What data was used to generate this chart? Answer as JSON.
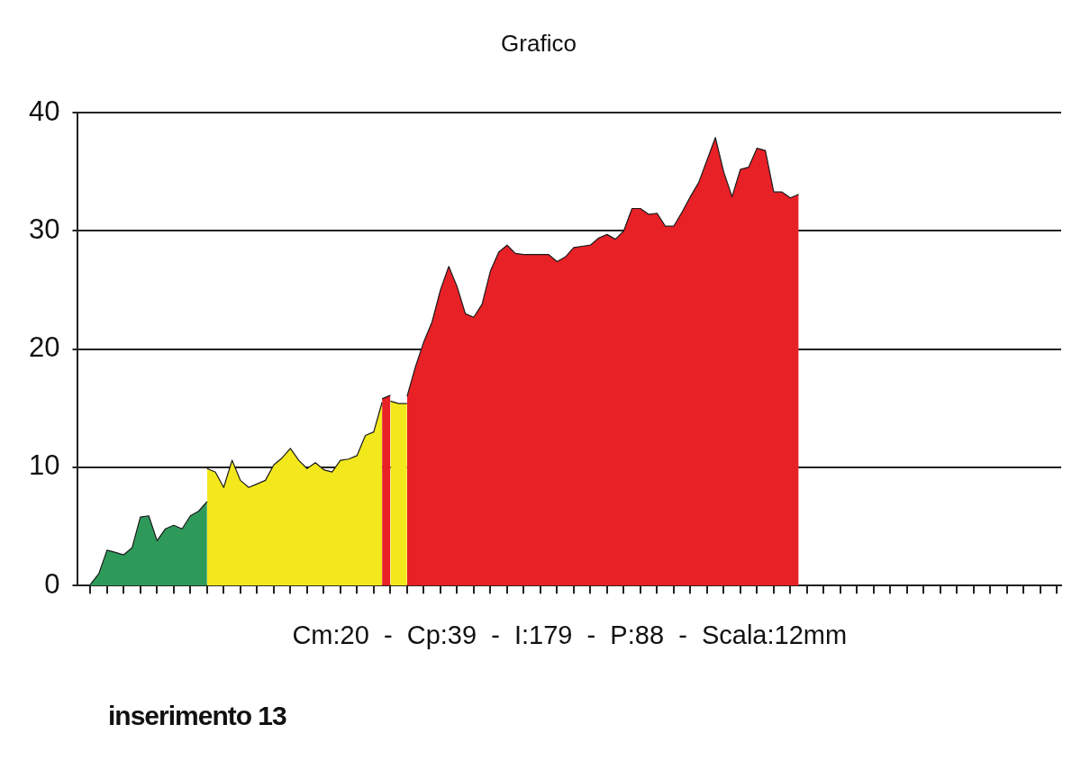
{
  "chart_data": {
    "type": "area",
    "title": "Grafico",
    "xlabel": "Cm:20  -  Cp:39  -  I:179  -  P:88  -  Scala:12mm",
    "annotations": [
      "inserimento 13"
    ],
    "categories": [
      null,
      null,
      null,
      null,
      null,
      null,
      null,
      null,
      null,
      null,
      null,
      null,
      null,
      null,
      null,
      null,
      null,
      null,
      null,
      null,
      null,
      null,
      null,
      null,
      null,
      null,
      null,
      null,
      null,
      null,
      null,
      null,
      null,
      null,
      null,
      null,
      null,
      null,
      null,
      null,
      null,
      null,
      null,
      null,
      null,
      null,
      null,
      null,
      null,
      null,
      null,
      null,
      null,
      null,
      null,
      null,
      null,
      null,
      null,
      null,
      null,
      null,
      null,
      null,
      null,
      null,
      null,
      null,
      null,
      null,
      null,
      null,
      null,
      null,
      null,
      null,
      null,
      null,
      null,
      null,
      null,
      null,
      null,
      null,
      null,
      null,
      null,
      null,
      null,
      null,
      null,
      null,
      null,
      null,
      null,
      null,
      null,
      null,
      null,
      null,
      null,
      null,
      null,
      null,
      null,
      null,
      null,
      null,
      null,
      null,
      null,
      null,
      null,
      null,
      null,
      null,
      null,
      null
    ],
    "ylim": [
      0,
      40
    ],
    "yticks": [
      0,
      10,
      20,
      30,
      40
    ],
    "grid": "y",
    "legend": false,
    "tick_labels": "y",
    "marker": "none",
    "series": [
      {
        "color": "#2e9a5a",
        "values": [
          null,
          0.1,
          1.0,
          3.0,
          2.8,
          2.6,
          3.2,
          5.8,
          5.9,
          3.8,
          4.8,
          5.1,
          4.8,
          5.9,
          6.3,
          7.1,
          null,
          null,
          null,
          null,
          null,
          null,
          null,
          null,
          null,
          null,
          null,
          null,
          null,
          null,
          null,
          null,
          null,
          null,
          null,
          null,
          null,
          null,
          null,
          null,
          null,
          null,
          null,
          null,
          null,
          null,
          null,
          null,
          null,
          null,
          null,
          null,
          null,
          null,
          null,
          null,
          null,
          null,
          null,
          null,
          null,
          null,
          null,
          null,
          null,
          null,
          null,
          null,
          null,
          null,
          null,
          null,
          null,
          null,
          null,
          null,
          null,
          null,
          null,
          null,
          null,
          null,
          null,
          null,
          null,
          null,
          null,
          null,
          null,
          null,
          null,
          null,
          null,
          null,
          null,
          null,
          null,
          null,
          null,
          null,
          null,
          null,
          null,
          null,
          null,
          null,
          null,
          null,
          null,
          null,
          null,
          null,
          null,
          null,
          null,
          null,
          null,
          null
        ]
      },
      {
        "color": "#f2e81c",
        "values": [
          null,
          null,
          null,
          null,
          null,
          null,
          null,
          null,
          null,
          null,
          null,
          null,
          null,
          null,
          null,
          9.9,
          9.6,
          8.3,
          10.6,
          8.9,
          8.3,
          8.6,
          8.9,
          10.2,
          10.8,
          11.6,
          10.6,
          9.9,
          10.4,
          9.8,
          9.6,
          10.6,
          10.7,
          11.0,
          12.7,
          13.0,
          15.5,
          null,
          null,
          null,
          null,
          null,
          null,
          null,
          null,
          null,
          null,
          null,
          null,
          null,
          null,
          null,
          null,
          null,
          null,
          null,
          null,
          null,
          null,
          null,
          null,
          null,
          null,
          null,
          null,
          null,
          null,
          null,
          null,
          null,
          null,
          null,
          null,
          null,
          null,
          null,
          null,
          null,
          null,
          null,
          null,
          null,
          null,
          null,
          null,
          null,
          null,
          null,
          null,
          null,
          null,
          null,
          null,
          null,
          null,
          null,
          null,
          null,
          null,
          null,
          null,
          null,
          null,
          null,
          null,
          null,
          null,
          null,
          null,
          null,
          null,
          null,
          null,
          null,
          null,
          null,
          null,
          null
        ]
      },
      {
        "color": "#f2e81c",
        "values": [
          null,
          null,
          null,
          null,
          null,
          null,
          null,
          null,
          null,
          null,
          null,
          null,
          null,
          null,
          null,
          null,
          null,
          null,
          null,
          null,
          null,
          null,
          null,
          null,
          null,
          null,
          null,
          null,
          null,
          null,
          null,
          null,
          null,
          null,
          null,
          null,
          null,
          15.6,
          15.4,
          15.4,
          null,
          null,
          null,
          null,
          null,
          null,
          null,
          null,
          null,
          null,
          null,
          null,
          null,
          null,
          null,
          null,
          null,
          null,
          null,
          null,
          null,
          null,
          null,
          null,
          null,
          null,
          null,
          null,
          null,
          null,
          null,
          null,
          null,
          null,
          null,
          null,
          null,
          null,
          null,
          null,
          null,
          null,
          null,
          null,
          null,
          null,
          null,
          null,
          null,
          null,
          null,
          null,
          null,
          null,
          null,
          null,
          null,
          null,
          null,
          null,
          null,
          null,
          null,
          null,
          null,
          null,
          null,
          null,
          null,
          null,
          null,
          null,
          null,
          null,
          null,
          null,
          null,
          null
        ]
      },
      {
        "color": "#e82127",
        "values": [
          null,
          null,
          null,
          null,
          null,
          null,
          null,
          null,
          null,
          null,
          null,
          null,
          null,
          null,
          null,
          null,
          null,
          null,
          null,
          null,
          null,
          null,
          null,
          null,
          null,
          null,
          null,
          null,
          null,
          null,
          null,
          null,
          null,
          null,
          null,
          null,
          15.8,
          16.1,
          null,
          16.0,
          18.5,
          20.6,
          22.3,
          25.0,
          27.0,
          25.3,
          23.0,
          22.7,
          23.8,
          26.6,
          28.2,
          28.8,
          28.1,
          28.0,
          28.0,
          28.0,
          28.0,
          27.4,
          27.8,
          28.6,
          28.7,
          28.8,
          29.4,
          29.7,
          29.3,
          30.0,
          31.9,
          31.9,
          31.4,
          31.5,
          30.4,
          30.4,
          31.6,
          32.9,
          34.1,
          36.0,
          37.9,
          35.0,
          32.9,
          35.2,
          35.4,
          37.0,
          36.8,
          33.3,
          33.3,
          32.8,
          33.1,
          null,
          null,
          null,
          null,
          null,
          null,
          null,
          null,
          null,
          null,
          null,
          null,
          null,
          null,
          null,
          null,
          null,
          null,
          null,
          null,
          null,
          null,
          null,
          null,
          null,
          null,
          null,
          null,
          null,
          null,
          null
        ]
      }
    ]
  }
}
